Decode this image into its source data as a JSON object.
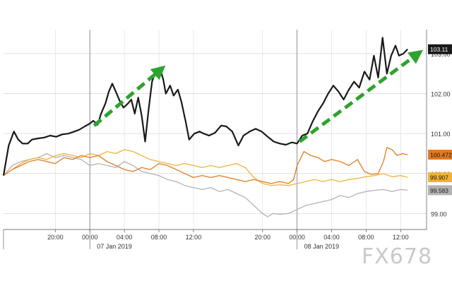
{
  "chart_data": {
    "type": "line",
    "title": "",
    "xlabel": "",
    "ylabel": "",
    "ylim": [
      98.6,
      103.6
    ],
    "grid": true,
    "y_ticks": [
      99.0,
      100.0,
      101.0,
      102.0,
      103.0
    ],
    "y_tick_labels": [
      "99.00",
      "100.00",
      "101.00",
      "102.00",
      "103.00"
    ],
    "x_ticks": [
      {
        "h": 4,
        "label": "20:00"
      },
      {
        "h": 8,
        "label": "00:00"
      },
      {
        "h": 12,
        "label": "04:00"
      },
      {
        "h": 16,
        "label": "08:00"
      },
      {
        "h": 20,
        "label": "12:00"
      },
      {
        "h": 28,
        "label": "20:00"
      },
      {
        "h": 32,
        "label": "00:00"
      },
      {
        "h": 36,
        "label": "04:00"
      },
      {
        "h": 40,
        "label": "08:00"
      },
      {
        "h": 44,
        "label": "12:00"
      }
    ],
    "x_dividers": [
      {
        "h": 8,
        "label": "07 Jan 2019"
      },
      {
        "h": 32,
        "label": "08 Jan 2019"
      }
    ],
    "x_range_hours": [
      -2,
      47
    ],
    "series": [
      {
        "color": "#1a1a1a",
        "last_label": "103.11",
        "points": [
          [
            -2,
            99.95
          ],
          [
            -1.4,
            100.7
          ],
          [
            -0.8,
            101.05
          ],
          [
            -0.3,
            100.85
          ],
          [
            0.2,
            100.75
          ],
          [
            0.8,
            100.75
          ],
          [
            1.3,
            100.85
          ],
          [
            2,
            100.88
          ],
          [
            2.7,
            100.9
          ],
          [
            3.4,
            100.95
          ],
          [
            4.1,
            100.92
          ],
          [
            4.8,
            100.98
          ],
          [
            5.5,
            101.0
          ],
          [
            6.2,
            101.05
          ],
          [
            6.8,
            101.1
          ],
          [
            7.4,
            101.18
          ],
          [
            8,
            101.25
          ],
          [
            8.4,
            101.32
          ],
          [
            8.9,
            101.22
          ],
          [
            9.3,
            101.5
          ],
          [
            9.8,
            101.75
          ],
          [
            10.2,
            102.05
          ],
          [
            10.6,
            102.25
          ],
          [
            11,
            102.05
          ],
          [
            11.5,
            101.8
          ],
          [
            11.9,
            101.65
          ],
          [
            12.4,
            101.75
          ],
          [
            12.8,
            101.85
          ],
          [
            13.2,
            101.5
          ],
          [
            13.6,
            101.9
          ],
          [
            14,
            101.45
          ],
          [
            14.4,
            100.8
          ],
          [
            14.8,
            101.6
          ],
          [
            15.2,
            102.3
          ],
          [
            15.6,
            102.55
          ],
          [
            16.1,
            102.65
          ],
          [
            16.5,
            102.35
          ],
          [
            16.8,
            102.0
          ],
          [
            17.3,
            102.2
          ],
          [
            17.7,
            101.95
          ],
          [
            18.2,
            102.1
          ],
          [
            18.6,
            101.8
          ],
          [
            19.1,
            101.3
          ],
          [
            19.5,
            100.85
          ],
          [
            20.1,
            101.0
          ],
          [
            20.7,
            101.05
          ],
          [
            21.2,
            101.0
          ],
          [
            21.8,
            100.95
          ],
          [
            22.5,
            101.02
          ],
          [
            23.2,
            101.2
          ],
          [
            23.8,
            101.18
          ],
          [
            24.5,
            101.05
          ],
          [
            25.2,
            100.7
          ],
          [
            25.8,
            100.95
          ],
          [
            26.5,
            101.05
          ],
          [
            27.2,
            101.12
          ],
          [
            27.9,
            101.05
          ],
          [
            28.6,
            100.92
          ],
          [
            29.3,
            100.8
          ],
          [
            30,
            100.75
          ],
          [
            30.7,
            100.72
          ],
          [
            31.4,
            100.78
          ],
          [
            32,
            100.75
          ],
          [
            32.6,
            100.95
          ],
          [
            33.2,
            101.0
          ],
          [
            33.8,
            101.3
          ],
          [
            34.4,
            101.55
          ],
          [
            35,
            101.75
          ],
          [
            35.6,
            102.0
          ],
          [
            36.2,
            102.2
          ],
          [
            36.8,
            102.05
          ],
          [
            37.4,
            101.85
          ],
          [
            38,
            102.1
          ],
          [
            38.6,
            102.3
          ],
          [
            39.2,
            102.15
          ],
          [
            39.8,
            102.55
          ],
          [
            40.4,
            102.35
          ],
          [
            40.9,
            102.95
          ],
          [
            41.4,
            102.4
          ],
          [
            41.9,
            103.4
          ],
          [
            42.4,
            102.5
          ],
          [
            42.9,
            102.95
          ],
          [
            43.4,
            103.2
          ],
          [
            43.8,
            102.95
          ],
          [
            44.3,
            103.0
          ],
          [
            44.8,
            103.11
          ]
        ]
      },
      {
        "color": "#e07b22",
        "last_label": "100.472",
        "points": [
          [
            -2,
            99.95
          ],
          [
            -1,
            100.1
          ],
          [
            0,
            100.2
          ],
          [
            1,
            100.3
          ],
          [
            2,
            100.35
          ],
          [
            3,
            100.3
          ],
          [
            4,
            100.25
          ],
          [
            5,
            100.4
          ],
          [
            6,
            100.35
          ],
          [
            7,
            100.45
          ],
          [
            8,
            100.4
          ],
          [
            9,
            100.45
          ],
          [
            10,
            100.3
          ],
          [
            11,
            100.2
          ],
          [
            12,
            100.1
          ],
          [
            13,
            100.05
          ],
          [
            14,
            100.15
          ],
          [
            15,
            100.1
          ],
          [
            16,
            100.25
          ],
          [
            17,
            100.2
          ],
          [
            18,
            100.1
          ],
          [
            19,
            100.0
          ],
          [
            20,
            99.9
          ],
          [
            21,
            99.95
          ],
          [
            22,
            99.9
          ],
          [
            23,
            99.95
          ],
          [
            24,
            99.9
          ],
          [
            25,
            99.85
          ],
          [
            26,
            99.8
          ],
          [
            27,
            99.85
          ],
          [
            28,
            99.8
          ],
          [
            29,
            99.75
          ],
          [
            30,
            99.8
          ],
          [
            31,
            99.75
          ],
          [
            31.6,
            99.85
          ],
          [
            32,
            100.2
          ],
          [
            32.8,
            100.55
          ],
          [
            33.6,
            100.45
          ],
          [
            34.4,
            100.4
          ],
          [
            35.2,
            100.3
          ],
          [
            36,
            100.35
          ],
          [
            37,
            100.3
          ],
          [
            38,
            100.2
          ],
          [
            39,
            100.35
          ],
          [
            39.8,
            100.05
          ],
          [
            40.6,
            99.98
          ],
          [
            41.4,
            100.0
          ],
          [
            42,
            100.3
          ],
          [
            42.4,
            100.65
          ],
          [
            43,
            100.6
          ],
          [
            43.6,
            100.45
          ],
          [
            44.2,
            100.5
          ],
          [
            44.8,
            100.472
          ]
        ]
      },
      {
        "color": "#f0b23a",
        "last_label": "99.907",
        "points": [
          [
            -2,
            99.95
          ],
          [
            -1,
            100.1
          ],
          [
            0,
            100.25
          ],
          [
            1,
            100.35
          ],
          [
            2,
            100.4
          ],
          [
            3,
            100.35
          ],
          [
            4,
            100.45
          ],
          [
            5,
            100.5
          ],
          [
            6,
            100.45
          ],
          [
            7,
            100.4
          ],
          [
            8,
            100.5
          ],
          [
            9,
            100.45
          ],
          [
            10,
            100.55
          ],
          [
            11,
            100.5
          ],
          [
            12,
            100.6
          ],
          [
            13,
            100.55
          ],
          [
            14,
            100.45
          ],
          [
            15,
            100.35
          ],
          [
            16,
            100.3
          ],
          [
            17,
            100.25
          ],
          [
            18,
            100.2
          ],
          [
            19,
            100.25
          ],
          [
            20,
            100.2
          ],
          [
            21,
            100.15
          ],
          [
            22,
            100.2
          ],
          [
            23,
            100.15
          ],
          [
            24,
            100.2
          ],
          [
            25,
            100.25
          ],
          [
            26,
            100.15
          ],
          [
            27,
            99.9
          ],
          [
            28,
            99.75
          ],
          [
            29,
            99.7
          ],
          [
            30,
            99.72
          ],
          [
            31,
            99.7
          ],
          [
            32,
            99.75
          ],
          [
            33,
            99.8
          ],
          [
            34,
            99.85
          ],
          [
            35,
            99.8
          ],
          [
            36,
            99.85
          ],
          [
            37,
            99.8
          ],
          [
            38,
            99.85
          ],
          [
            39,
            99.88
          ],
          [
            40,
            99.92
          ],
          [
            41,
            99.95
          ],
          [
            42,
            100.0
          ],
          [
            43,
            99.92
          ],
          [
            44,
            99.95
          ],
          [
            44.8,
            99.907
          ]
        ]
      },
      {
        "color": "#b3b3b3",
        "last_label": "99.583",
        "points": [
          [
            -2,
            99.95
          ],
          [
            -1,
            100.2
          ],
          [
            0,
            100.3
          ],
          [
            1,
            100.35
          ],
          [
            2,
            100.4
          ],
          [
            3,
            100.5
          ],
          [
            4,
            100.4
          ],
          [
            5,
            100.45
          ],
          [
            6,
            100.4
          ],
          [
            7,
            100.35
          ],
          [
            8,
            100.2
          ],
          [
            9,
            100.25
          ],
          [
            10,
            100.2
          ],
          [
            11,
            100.15
          ],
          [
            12,
            100.3
          ],
          [
            13,
            100.2
          ],
          [
            14,
            100.05
          ],
          [
            15,
            100.0
          ],
          [
            16,
            99.95
          ],
          [
            17,
            99.85
          ],
          [
            18,
            99.8
          ],
          [
            19,
            99.7
          ],
          [
            20,
            99.65
          ],
          [
            21,
            99.6
          ],
          [
            22,
            99.65
          ],
          [
            23,
            99.55
          ],
          [
            24,
            99.6
          ],
          [
            25,
            99.5
          ],
          [
            26,
            99.4
          ],
          [
            27,
            99.2
          ],
          [
            28,
            99.0
          ],
          [
            28.6,
            98.92
          ],
          [
            29.2,
            99.0
          ],
          [
            30,
            98.98
          ],
          [
            31,
            99.0
          ],
          [
            32,
            99.1
          ],
          [
            33,
            99.2
          ],
          [
            34,
            99.25
          ],
          [
            35,
            99.3
          ],
          [
            36,
            99.35
          ],
          [
            37,
            99.45
          ],
          [
            38,
            99.4
          ],
          [
            39,
            99.5
          ],
          [
            40,
            99.55
          ],
          [
            41,
            99.58
          ],
          [
            42,
            99.6
          ],
          [
            43,
            99.55
          ],
          [
            44,
            99.6
          ],
          [
            44.8,
            99.583
          ]
        ]
      }
    ],
    "annotations": [
      {
        "type": "arrow",
        "color": "#2ea32e",
        "from": [
          8.5,
          101.2
        ],
        "to": [
          16.2,
          102.6
        ]
      },
      {
        "type": "arrow",
        "color": "#2ea32e",
        "from": [
          32.3,
          100.8
        ],
        "to": [
          46.0,
          103.0
        ]
      }
    ]
  },
  "watermark": "FX678"
}
